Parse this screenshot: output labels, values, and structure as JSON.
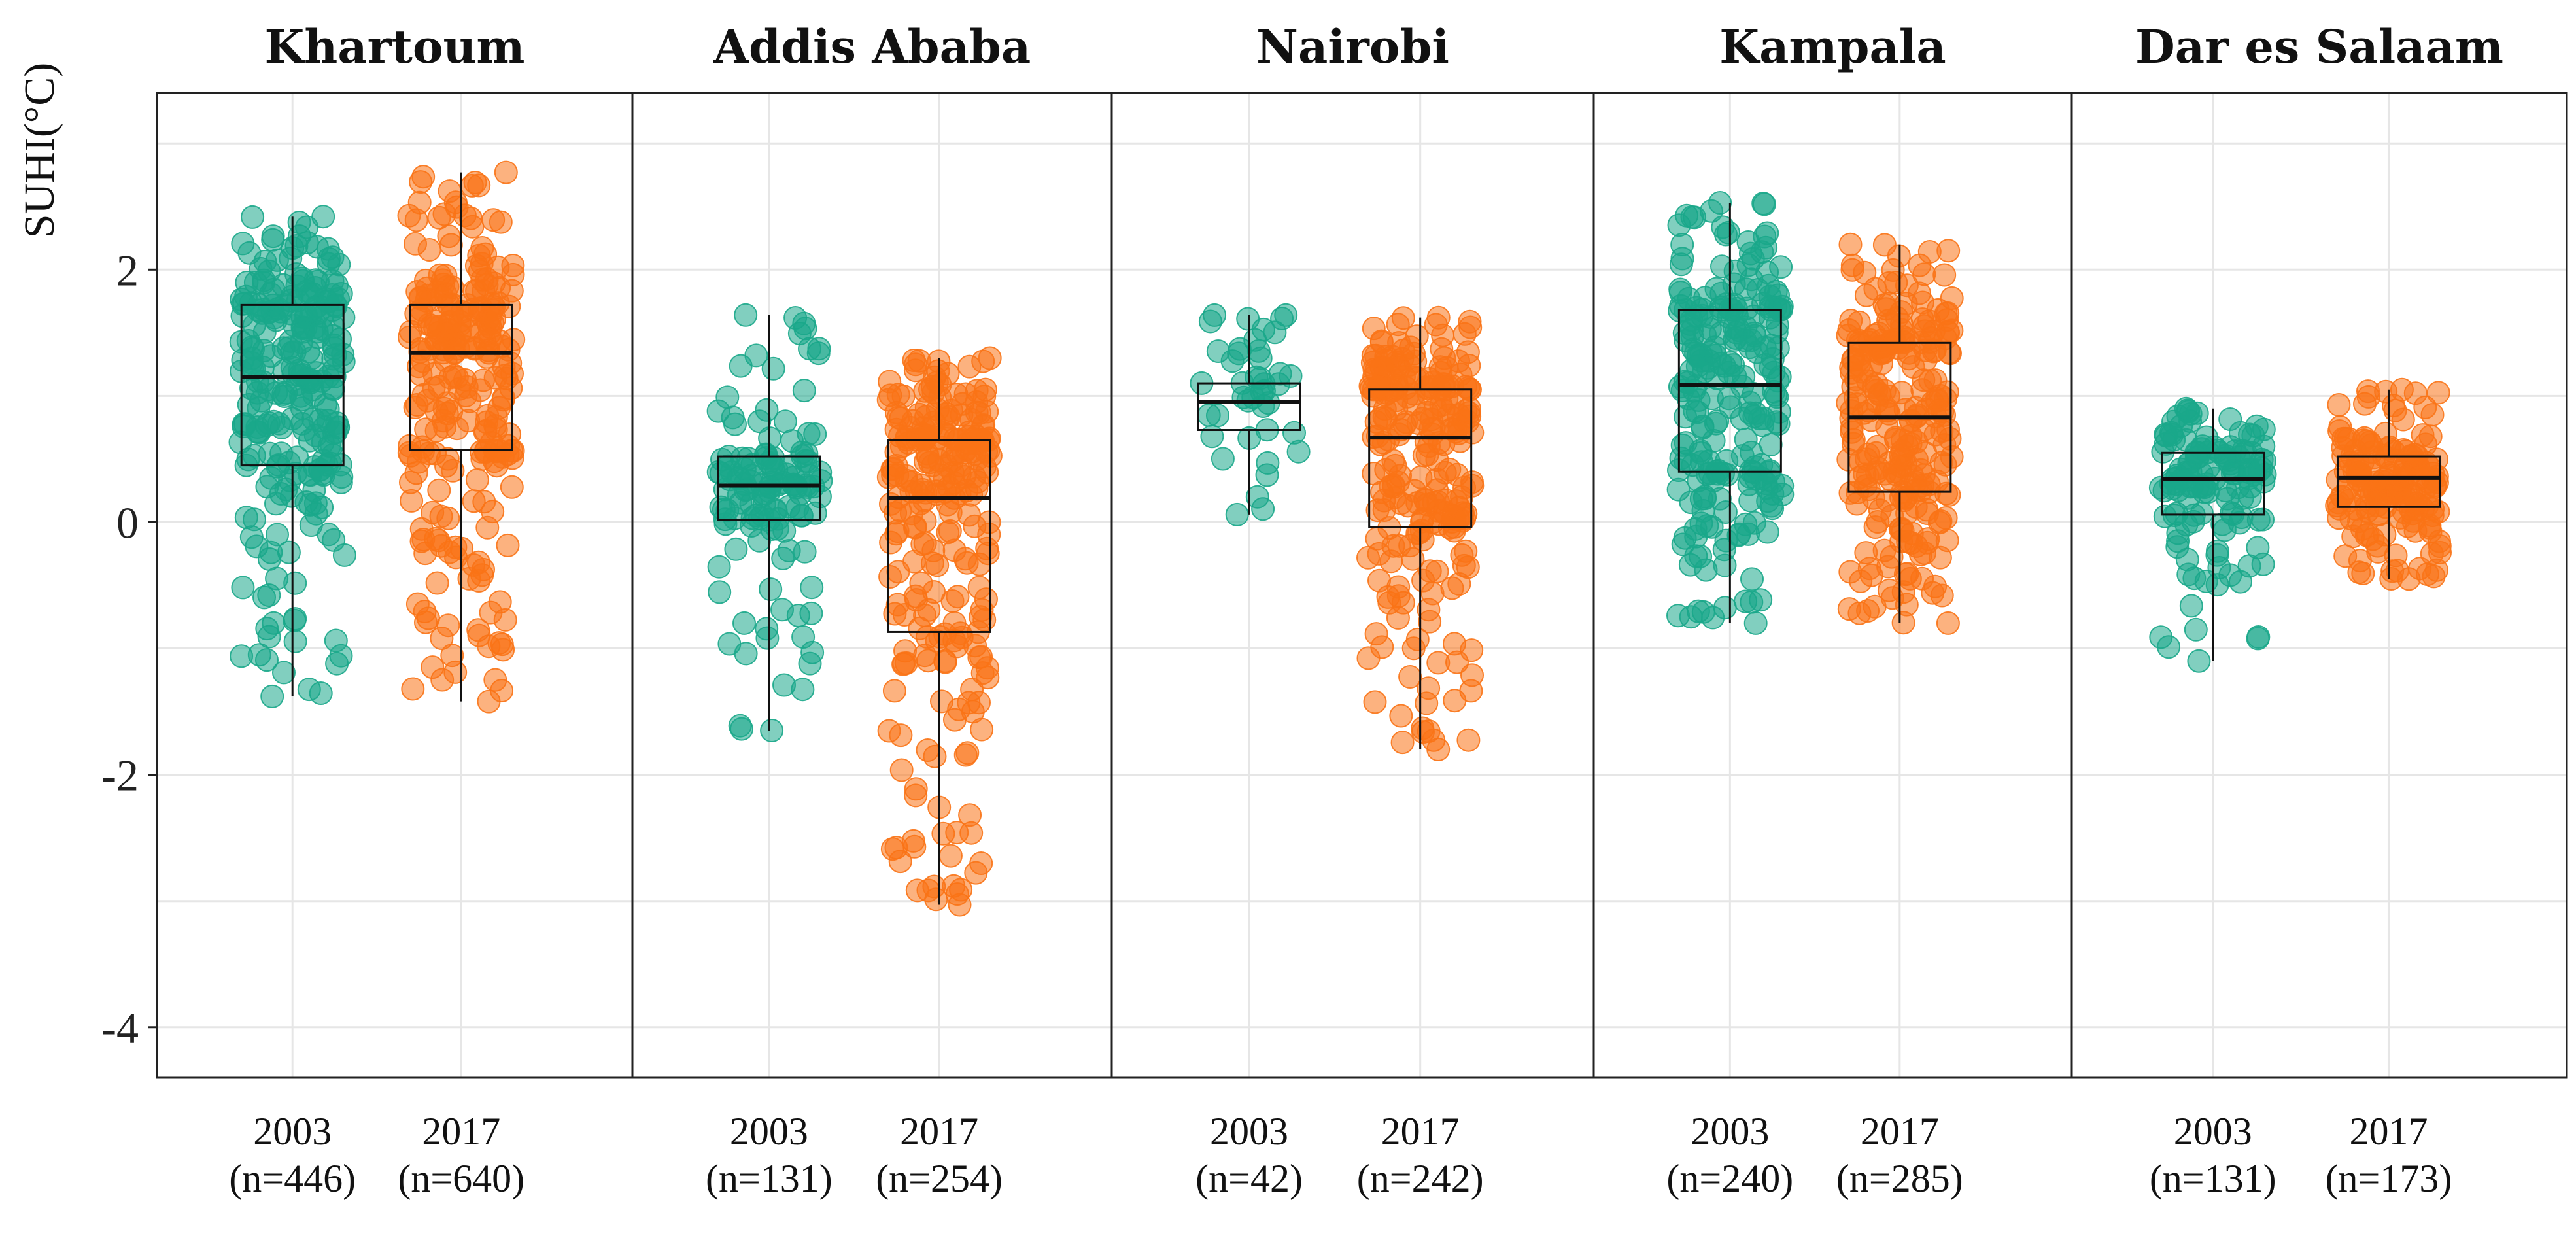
{
  "chart_data": {
    "type": "box+jitter",
    "ylabel": "SUHI(°C)",
    "ylim": [
      -4.4,
      3.4
    ],
    "yticks": [
      -4,
      -2,
      0,
      2
    ],
    "ytick_labels": [
      "-4",
      "-2",
      "0",
      "2"
    ],
    "grid": true,
    "colors": {
      "2003": "#1aa78a",
      "2017": "#f97316"
    },
    "panels": [
      {
        "city": "Khartoum",
        "groups": [
          {
            "year": "2003",
            "n_label": "(n=446)",
            "n": 446,
            "min": -1.38,
            "q1": 0.45,
            "median": 1.15,
            "q3": 1.72,
            "max": 2.42,
            "point_min": -1.38,
            "point_max": 2.42
          },
          {
            "year": "2017",
            "n_label": "(n=640)",
            "n": 640,
            "min": -1.42,
            "q1": 0.57,
            "median": 1.34,
            "q3": 1.72,
            "max": 2.77,
            "point_min": -1.42,
            "point_max": 2.77
          }
        ]
      },
      {
        "city": "Addis Ababa",
        "groups": [
          {
            "year": "2003",
            "n_label": "(n=131)",
            "n": 131,
            "min": -1.65,
            "q1": 0.02,
            "median": 0.29,
            "q3": 0.52,
            "max": 1.64,
            "point_min": -1.65,
            "point_max": 1.64
          },
          {
            "year": "2017",
            "n_label": "(n=254)",
            "n": 254,
            "min": -3.03,
            "q1": -0.87,
            "median": 0.19,
            "q3": 0.65,
            "max": 1.3,
            "point_min": -3.03,
            "point_max": 1.3
          }
        ]
      },
      {
        "city": "Nairobi",
        "groups": [
          {
            "year": "2003",
            "n_label": "(n=42)",
            "n": 42,
            "min": 0.06,
            "q1": 0.73,
            "median": 0.95,
            "q3": 1.1,
            "max": 1.64,
            "point_min": 0.06,
            "point_max": 1.64
          },
          {
            "year": "2017",
            "n_label": "(n=242)",
            "n": 242,
            "min": -1.8,
            "q1": -0.04,
            "median": 0.67,
            "q3": 1.05,
            "max": 1.62,
            "point_min": -1.8,
            "point_max": 1.62
          }
        ]
      },
      {
        "city": "Kampala",
        "groups": [
          {
            "year": "2003",
            "n_label": "(n=240)",
            "n": 240,
            "min": -0.8,
            "q1": 0.4,
            "median": 1.09,
            "q3": 1.68,
            "max": 2.53,
            "point_min": -0.8,
            "point_max": 2.53
          },
          {
            "year": "2017",
            "n_label": "(n=285)",
            "n": 285,
            "min": -0.8,
            "q1": 0.24,
            "median": 0.83,
            "q3": 1.42,
            "max": 2.2,
            "point_min": -0.8,
            "point_max": 2.2
          }
        ]
      },
      {
        "city": "Dar es Salaam",
        "groups": [
          {
            "year": "2003",
            "n_label": "(n=131)",
            "n": 131,
            "min": -1.1,
            "q1": 0.06,
            "median": 0.34,
            "q3": 0.55,
            "max": 0.9,
            "point_min": -1.1,
            "point_max": 0.9
          },
          {
            "year": "2017",
            "n_label": "(n=173)",
            "n": 173,
            "min": -0.45,
            "q1": 0.12,
            "median": 0.35,
            "q3": 0.52,
            "max": 1.05,
            "point_min": -0.45,
            "point_max": 1.05
          }
        ]
      }
    ]
  }
}
